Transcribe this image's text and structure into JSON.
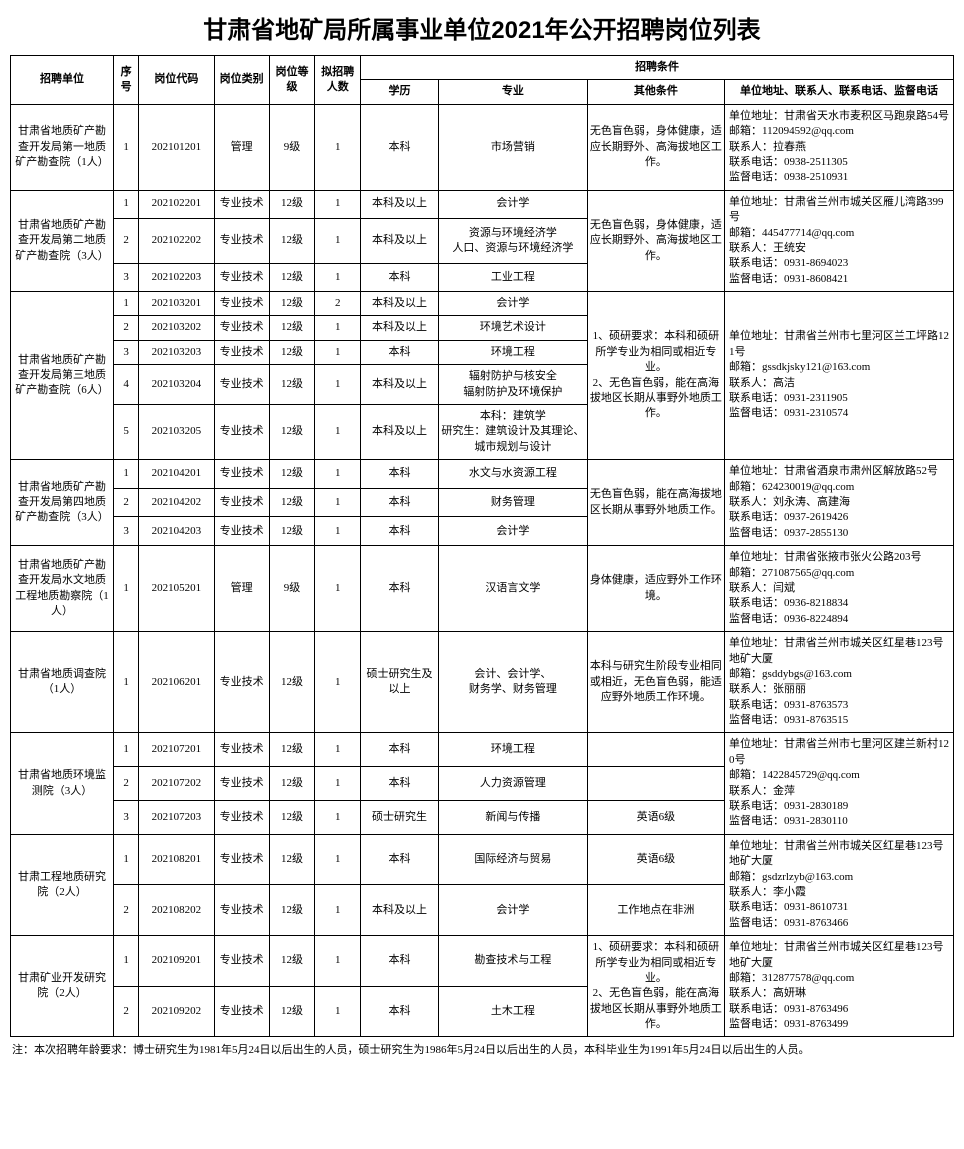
{
  "title": "甘肃省地矿局所属事业单位2021年公开招聘岗位列表",
  "headers": {
    "unit": "招聘单位",
    "seq": "序号",
    "code": "岗位代码",
    "type": "岗位类别",
    "level": "岗位等级",
    "count": "拟招聘人数",
    "conditions": "招聘条件",
    "edu": "学历",
    "major": "专业",
    "other": "其他条件",
    "contact": "单位地址、联系人、联系电话、监督电话"
  },
  "units": [
    {
      "name": "甘肃省地质矿产勘查开发局第一地质矿产勘查院（1人）",
      "other": "无色盲色弱，身体健康，适应长期野外、高海拔地区工作。",
      "contact": "单位地址：甘肃省天水市麦积区马跑泉路54号\n邮箱：112094592@qq.com\n联系人：拉春燕\n联系电话：0938-2511305\n监督电话：0938-2510931",
      "rows": [
        {
          "seq": "1",
          "code": "202101201",
          "type": "管理",
          "level": "9级",
          "count": "1",
          "edu": "本科",
          "major": "市场营销"
        }
      ]
    },
    {
      "name": "甘肃省地质矿产勘查开发局第二地质矿产勘查院（3人）",
      "other": "无色盲色弱，身体健康，适应长期野外、高海拔地区工作。",
      "contact": "单位地址：甘肃省兰州市城关区雁儿湾路399号\n邮箱：445477714@qq.com\n联系人：王统安\n联系电话：0931-8694023\n监督电话：0931-8608421",
      "rows": [
        {
          "seq": "1",
          "code": "202102201",
          "type": "专业技术",
          "level": "12级",
          "count": "1",
          "edu": "本科及以上",
          "major": "会计学"
        },
        {
          "seq": "2",
          "code": "202102202",
          "type": "专业技术",
          "level": "12级",
          "count": "1",
          "edu": "本科及以上",
          "major": "资源与环境经济学\n人口、资源与环境经济学"
        },
        {
          "seq": "3",
          "code": "202102203",
          "type": "专业技术",
          "level": "12级",
          "count": "1",
          "edu": "本科",
          "major": "工业工程"
        }
      ]
    },
    {
      "name": "甘肃省地质矿产勘查开发局第三地质矿产勘查院（6人）",
      "other": "1、硕研要求：本科和硕研所学专业为相同或相近专业。\n2、无色盲色弱，能在高海拔地区长期从事野外地质工作。",
      "contact": "单位地址：甘肃省兰州市七里河区兰工坪路121号\n邮箱：gssdkjsky121@163.com\n联系人：高洁\n联系电话：0931-2311905\n监督电话：0931-2310574",
      "rows": [
        {
          "seq": "1",
          "code": "202103201",
          "type": "专业技术",
          "level": "12级",
          "count": "2",
          "edu": "本科及以上",
          "major": "会计学"
        },
        {
          "seq": "2",
          "code": "202103202",
          "type": "专业技术",
          "level": "12级",
          "count": "1",
          "edu": "本科及以上",
          "major": "环境艺术设计"
        },
        {
          "seq": "3",
          "code": "202103203",
          "type": "专业技术",
          "level": "12级",
          "count": "1",
          "edu": "本科",
          "major": "环境工程"
        },
        {
          "seq": "4",
          "code": "202103204",
          "type": "专业技术",
          "level": "12级",
          "count": "1",
          "edu": "本科及以上",
          "major": "辐射防护与核安全\n辐射防护及环境保护"
        },
        {
          "seq": "5",
          "code": "202103205",
          "type": "专业技术",
          "level": "12级",
          "count": "1",
          "edu": "本科及以上",
          "major": "本科：建筑学\n研究生：建筑设计及其理论、城市规划与设计"
        }
      ]
    },
    {
      "name": "甘肃省地质矿产勘查开发局第四地质矿产勘查院（3人）",
      "other": "无色盲色弱，能在高海拔地区长期从事野外地质工作。",
      "contact": "单位地址：甘肃省酒泉市肃州区解放路52号\n邮箱：624230019@qq.com\n联系人：刘永涛、高建海\n联系电话：0937-2619426\n监督电话：0937-2855130",
      "rows": [
        {
          "seq": "1",
          "code": "202104201",
          "type": "专业技术",
          "level": "12级",
          "count": "1",
          "edu": "本科",
          "major": "水文与水资源工程"
        },
        {
          "seq": "2",
          "code": "202104202",
          "type": "专业技术",
          "level": "12级",
          "count": "1",
          "edu": "本科",
          "major": "财务管理"
        },
        {
          "seq": "3",
          "code": "202104203",
          "type": "专业技术",
          "level": "12级",
          "count": "1",
          "edu": "本科",
          "major": "会计学"
        }
      ]
    },
    {
      "name": "甘肃省地质矿产勘查开发局水文地质工程地质勘察院（1人）",
      "other": "身体健康，适应野外工作环境。",
      "contact": "单位地址：甘肃省张掖市张火公路203号\n邮箱：271087565@qq.com\n联系人：闫斌\n联系电话：0936-8218834\n监督电话：0936-8224894",
      "rows": [
        {
          "seq": "1",
          "code": "202105201",
          "type": "管理",
          "level": "9级",
          "count": "1",
          "edu": "本科",
          "major": "汉语言文学"
        }
      ]
    },
    {
      "name": "甘肃省地质调查院（1人）",
      "other": "本科与研究生阶段专业相同或相近，无色盲色弱，能适应野外地质工作环境。",
      "contact": "单位地址：甘肃省兰州市城关区红星巷123号地矿大厦\n邮箱：gsddybgs@163.com\n联系人：张丽丽\n联系电话：0931-8763573\n监督电话：0931-8763515",
      "rows": [
        {
          "seq": "1",
          "code": "202106201",
          "type": "专业技术",
          "level": "12级",
          "count": "1",
          "edu": "硕士研究生及以上",
          "major": "会计、会计学、\n财务学、财务管理"
        }
      ]
    },
    {
      "name": "甘肃省地质环境监测院（3人）",
      "contact": "单位地址：甘肃省兰州市七里河区建兰新村120号\n邮箱：1422845729@qq.com\n联系人：金萍\n联系电话：0931-2830189\n监督电话：0931-2830110",
      "rows": [
        {
          "seq": "1",
          "code": "202107201",
          "type": "专业技术",
          "level": "12级",
          "count": "1",
          "edu": "本科",
          "major": "环境工程",
          "other": ""
        },
        {
          "seq": "2",
          "code": "202107202",
          "type": "专业技术",
          "level": "12级",
          "count": "1",
          "edu": "本科",
          "major": "人力资源管理",
          "other": ""
        },
        {
          "seq": "3",
          "code": "202107203",
          "type": "专业技术",
          "level": "12级",
          "count": "1",
          "edu": "硕士研究生",
          "major": "新闻与传播",
          "other": "英语6级"
        }
      ]
    },
    {
      "name": "甘肃工程地质研究院（2人）",
      "contact": "单位地址：甘肃省兰州市城关区红星巷123号地矿大厦\n邮箱：gsdzrlzyb@163.com\n联系人：李小霞\n联系电话：0931-8610731\n监督电话：0931-8763466",
      "rows": [
        {
          "seq": "1",
          "code": "202108201",
          "type": "专业技术",
          "level": "12级",
          "count": "1",
          "edu": "本科",
          "major": "国际经济与贸易",
          "other": "英语6级"
        },
        {
          "seq": "2",
          "code": "202108202",
          "type": "专业技术",
          "level": "12级",
          "count": "1",
          "edu": "本科及以上",
          "major": "会计学",
          "other": "工作地点在非洲"
        }
      ]
    },
    {
      "name": "甘肃矿业开发研究院（2人）",
      "other": "1、硕研要求：本科和硕研所学专业为相同或相近专业。\n2、无色盲色弱，能在高海拔地区长期从事野外地质工作。",
      "contact": "单位地址：甘肃省兰州市城关区红星巷123号地矿大厦\n邮箱：312877578@qq.com\n联系人：高妍琳\n联系电话：0931-8763496\n监督电话：0931-8763499",
      "rows": [
        {
          "seq": "1",
          "code": "202109201",
          "type": "专业技术",
          "level": "12级",
          "count": "1",
          "edu": "本科",
          "major": "勘查技术与工程"
        },
        {
          "seq": "2",
          "code": "202109202",
          "type": "专业技术",
          "level": "12级",
          "count": "1",
          "edu": "本科",
          "major": "土木工程"
        }
      ]
    }
  ],
  "footnote": "注：本次招聘年龄要求：博士研究生为1981年5月24日以后出生的人员，硕士研究生为1986年5月24日以后出生的人员，本科毕业生为1991年5月24日以后出生的人员。"
}
